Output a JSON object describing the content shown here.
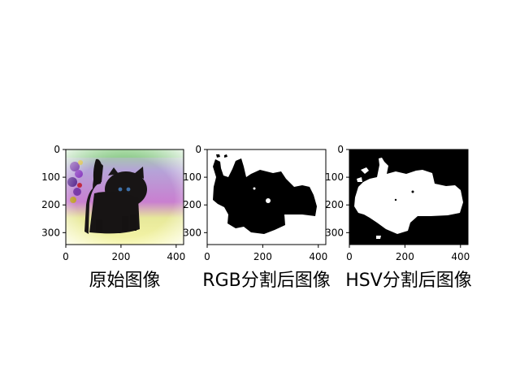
{
  "chart_data": [
    {
      "type": "image",
      "image_name": "kitten-photo",
      "xlabel": "原始图像",
      "xlim": [
        0,
        427
      ],
      "ylim": [
        0,
        343
      ],
      "xticks": [
        0,
        200,
        400
      ],
      "yticks": [
        0,
        100,
        200,
        300
      ],
      "colors": {
        "background_top": "#7fc47f",
        "background_mid": "#c58ad6",
        "floor": "#f2f287",
        "cat": "#161414",
        "flowers_left": "#6a2aa0",
        "eyes": "#3d6fa8"
      }
    },
    {
      "type": "image",
      "image_name": "rgb-segmentation-mask",
      "xlabel": "RGB分割后图像",
      "xlim": [
        0,
        427
      ],
      "ylim": [
        0,
        343
      ],
      "xticks": [
        0,
        200,
        400
      ],
      "yticks": [
        0,
        100,
        200,
        300
      ],
      "colors": {
        "foreground": "#000000",
        "background": "#ffffff"
      }
    },
    {
      "type": "image",
      "image_name": "hsv-segmentation-mask",
      "xlabel": "HSV分割后图像",
      "xlim": [
        0,
        427
      ],
      "ylim": [
        0,
        343
      ],
      "xticks": [
        0,
        200,
        400
      ],
      "yticks": [
        0,
        100,
        200,
        300
      ],
      "colors": {
        "foreground": "#ffffff",
        "background": "#000000"
      }
    }
  ]
}
